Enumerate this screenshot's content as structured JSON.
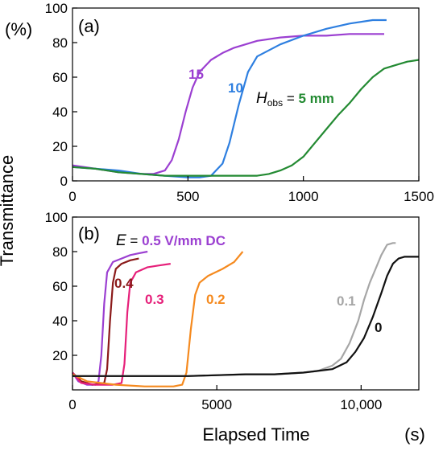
{
  "chart_data": [
    {
      "type": "line",
      "panel_label": "(a)",
      "ylabel_unit": "(%)",
      "xlim": [
        0,
        1500
      ],
      "ylim": [
        0,
        100
      ],
      "xticks": [
        "0",
        "500",
        "1000",
        "1500"
      ],
      "yticks": [
        "0",
        "20",
        "40",
        "60",
        "80",
        "100"
      ],
      "annotation_prefix": {
        "var": "H",
        "sub": "obs",
        "eq": " = "
      },
      "series": [
        {
          "name": "15",
          "color": "#9b3fd1",
          "x": [
            0,
            100,
            200,
            300,
            350,
            400,
            430,
            460,
            490,
            520,
            550,
            600,
            650,
            700,
            800,
            900,
            1000,
            1100,
            1200,
            1350
          ],
          "y": [
            9,
            7,
            5,
            4,
            4,
            6,
            12,
            24,
            40,
            54,
            63,
            70,
            74,
            77,
            81,
            83,
            84,
            84,
            85,
            85
          ]
        },
        {
          "name": "10",
          "color": "#2e7fe0",
          "x": [
            0,
            100,
            200,
            300,
            400,
            500,
            550,
            600,
            650,
            680,
            720,
            760,
            800,
            900,
            1000,
            1100,
            1200,
            1300,
            1360
          ],
          "y": [
            8,
            7,
            6,
            4,
            3,
            2,
            2,
            3,
            10,
            22,
            44,
            63,
            72,
            79,
            84,
            88,
            91,
            93,
            93
          ]
        },
        {
          "name": "5 mm",
          "color": "#238a32",
          "x": [
            0,
            100,
            200,
            300,
            400,
            600,
            800,
            850,
            900,
            950,
            1000,
            1050,
            1100,
            1150,
            1200,
            1250,
            1300,
            1350,
            1400,
            1450,
            1500
          ],
          "y": [
            8,
            7,
            5,
            4,
            3,
            3,
            3,
            4,
            6,
            9,
            14,
            22,
            30,
            38,
            45,
            53,
            60,
            65,
            67,
            69,
            70
          ]
        }
      ]
    },
    {
      "type": "line",
      "panel_label": "(b)",
      "xlabel": "Elapsed Time",
      "xlabel_unit": "(s)",
      "ylabel": "Transmittance",
      "xlim": [
        0,
        12000
      ],
      "ylim": [
        0,
        100
      ],
      "xticks": [
        "0",
        "5000",
        "10,000"
      ],
      "yticks": [
        "20",
        "40",
        "60",
        "80",
        "100"
      ],
      "annotation_prefix": {
        "var": "E",
        "eq": " = "
      },
      "series": [
        {
          "name": "0.5 V/mm DC",
          "color": "#9b3fd1",
          "x": [
            0,
            200,
            500,
            800,
            900,
            1000,
            1100,
            1200,
            1400,
            1700,
            2000,
            2300,
            2600
          ],
          "y": [
            10,
            5,
            3,
            3,
            5,
            20,
            50,
            68,
            74,
            76,
            78,
            79,
            80
          ]
        },
        {
          "name": "0.4",
          "color": "#8b1a1a",
          "x": [
            0,
            300,
            700,
            1100,
            1200,
            1300,
            1400,
            1500,
            1700,
            2000,
            2300
          ],
          "y": [
            10,
            5,
            3,
            4,
            12,
            40,
            62,
            70,
            73,
            75,
            76
          ]
        },
        {
          "name": "0.3",
          "color": "#e6207a",
          "x": [
            0,
            300,
            800,
            1400,
            1700,
            1800,
            1900,
            2000,
            2200,
            2600,
            3000,
            3400
          ],
          "y": [
            10,
            4,
            3,
            3,
            4,
            15,
            45,
            62,
            68,
            71,
            72,
            73
          ]
        },
        {
          "name": "0.2",
          "color": "#f58a1f",
          "x": [
            0,
            500,
            1500,
            2500,
            3500,
            3800,
            3950,
            4100,
            4250,
            4400,
            4700,
            5200,
            5600,
            5900
          ],
          "y": [
            9,
            5,
            3,
            2,
            2,
            3,
            10,
            35,
            55,
            62,
            66,
            70,
            74,
            80
          ]
        },
        {
          "name": "0.1",
          "color": "#a6a6a6",
          "x": [
            0,
            2000,
            4000,
            6000,
            7000,
            8000,
            8500,
            9000,
            9300,
            9600,
            9900,
            10100,
            10300,
            10500,
            10700,
            10900,
            11100,
            11200
          ],
          "y": [
            8,
            8,
            8,
            9,
            9,
            10,
            11,
            14,
            18,
            27,
            40,
            52,
            62,
            70,
            78,
            84,
            85,
            85
          ]
        },
        {
          "name": "0",
          "color": "#111111",
          "x": [
            0,
            2000,
            4000,
            6000,
            7000,
            8000,
            8500,
            9000,
            9500,
            9800,
            10100,
            10400,
            10700,
            10900,
            11100,
            11300,
            11500,
            12000
          ],
          "y": [
            8,
            8,
            8,
            9,
            9,
            10,
            11,
            12,
            16,
            22,
            30,
            42,
            56,
            66,
            73,
            76,
            77,
            77
          ]
        }
      ]
    }
  ]
}
